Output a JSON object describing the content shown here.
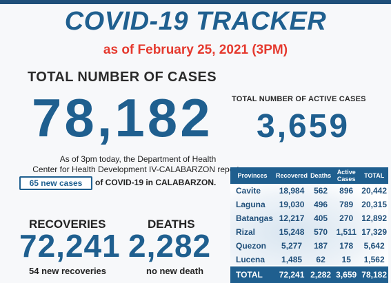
{
  "title": "COVID-19 TRACKER",
  "date": "as of February 25, 2021 (3PM)",
  "total": {
    "label": "TOTAL NUMBER OF CASES",
    "value": "78,182"
  },
  "active": {
    "label": "TOTAL NUMBER OF ACTIVE CASES",
    "value": "3,659"
  },
  "blurb": {
    "line1": "As of 3pm today, the Department of Health",
    "line2": "Center for Health Development IV-CALABARZON reports",
    "new_cases": "65 new cases",
    "suffix": "of COVID-19 in CALABARZON."
  },
  "recoveries": {
    "label": "RECOVERIES",
    "value": "72,241",
    "sub": "54 new recoveries"
  },
  "deaths": {
    "label": "DEATHS",
    "value": "2,282",
    "sub": "no new death"
  },
  "table": {
    "headers": [
      "Provinces",
      "Recovered",
      "Deaths",
      "Active Cases",
      "TOTAL"
    ],
    "rows": [
      [
        "Cavite",
        "18,984",
        "562",
        "896",
        "20,442"
      ],
      [
        "Laguna",
        "19,030",
        "496",
        "789",
        "20,315"
      ],
      [
        "Batangas",
        "12,217",
        "405",
        "270",
        "12,892"
      ],
      [
        "Rizal",
        "15,248",
        "570",
        "1,511",
        "17,329"
      ],
      [
        "Quezon",
        "5,277",
        "187",
        "178",
        "5,642"
      ],
      [
        "Lucena",
        "1,485",
        "62",
        "15",
        "1,562"
      ]
    ],
    "total": [
      "TOTAL",
      "72,241",
      "2,282",
      "3,659",
      "78,182"
    ]
  },
  "colors": {
    "primary": "#1f5f8f",
    "accent_red": "#e53a2f"
  }
}
